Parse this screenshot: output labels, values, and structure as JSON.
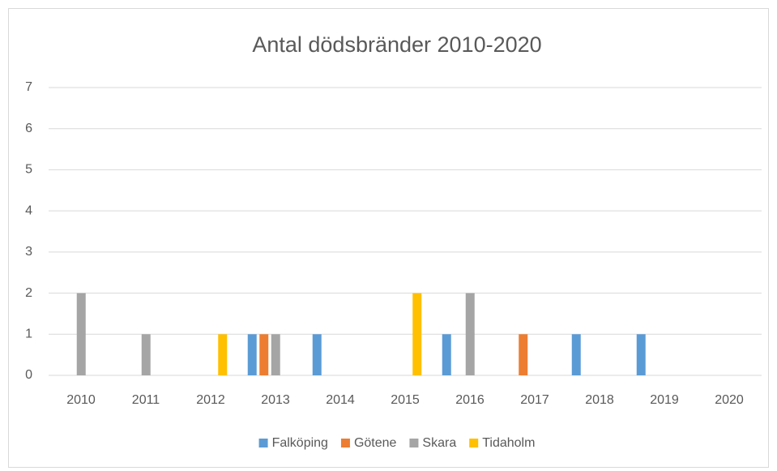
{
  "chart_data": {
    "type": "bar",
    "title": "Antal dödsbränder 2010-2020",
    "categories": [
      "2010",
      "2011",
      "2012",
      "2013",
      "2014",
      "2015",
      "2016",
      "2017",
      "2018",
      "2019",
      "2020"
    ],
    "series": [
      {
        "name": "Falköping",
        "color": "#5b9bd5",
        "values": [
          0,
          0,
          0,
          1,
          1,
          0,
          1,
          0,
          1,
          1,
          0
        ]
      },
      {
        "name": "Götene",
        "color": "#ed7d31",
        "values": [
          0,
          0,
          0,
          1,
          0,
          0,
          0,
          1,
          0,
          0,
          0
        ]
      },
      {
        "name": "Skara",
        "color": "#a5a5a5",
        "values": [
          2,
          1,
          0,
          1,
          0,
          0,
          2,
          0,
          0,
          0,
          0
        ]
      },
      {
        "name": "Tidaholm",
        "color": "#ffc000",
        "values": [
          0,
          0,
          1,
          0,
          0,
          2,
          0,
          0,
          0,
          0,
          0
        ]
      }
    ],
    "ylim": [
      0,
      7
    ],
    "yticks": [
      0,
      1,
      2,
      3,
      4,
      5,
      6,
      7
    ],
    "grid": true,
    "legend": "bottom"
  }
}
